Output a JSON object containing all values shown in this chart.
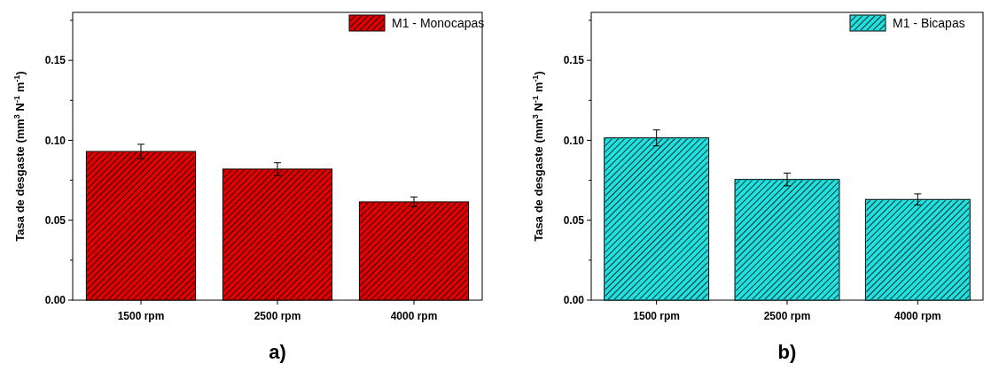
{
  "chart_data": [
    {
      "type": "bar",
      "categories": [
        "1500 rpm",
        "2500 rpm",
        "4000 rpm"
      ],
      "ylabel": "Tasa de desgaste (mm$^{3}$ N$^{-1}$ m$^{-1}$)",
      "ylim": [
        0,
        0.18
      ],
      "yticks": [
        {
          "value": 0,
          "label": "0.00"
        },
        {
          "value": 0.025,
          "label": null
        },
        {
          "value": 0.05,
          "label": "0.05"
        },
        {
          "value": 0.075,
          "label": null
        },
        {
          "value": 0.1,
          "label": "0.10"
        },
        {
          "value": 0.125,
          "label": null
        },
        {
          "value": 0.15,
          "label": "0.15"
        },
        {
          "value": 0.175,
          "label": null
        }
      ],
      "legend": "top right",
      "annotations": [
        "a)"
      ],
      "series": [
        {
          "name": "M1 - Monocapas",
          "color": "#e00000",
          "values": [
            0.093,
            0.082,
            0.0615
          ],
          "errors": [
            0.0045,
            0.004,
            0.003
          ]
        }
      ]
    },
    {
      "type": "bar",
      "categories": [
        "1500 rpm",
        "2500 rpm",
        "4000 rpm"
      ],
      "ylabel": "Tasa de desgaste (mm$^{3}$ N$^{-1}$ m$^{-1}$)",
      "ylim": [
        0,
        0.18
      ],
      "yticks": [
        {
          "value": 0,
          "label": "0.00"
        },
        {
          "value": 0.025,
          "label": null
        },
        {
          "value": 0.05,
          "label": "0.05"
        },
        {
          "value": 0.075,
          "label": null
        },
        {
          "value": 0.1,
          "label": "0.10"
        },
        {
          "value": 0.125,
          "label": null
        },
        {
          "value": 0.15,
          "label": "0.15"
        },
        {
          "value": 0.175,
          "label": null
        }
      ],
      "legend": "top right",
      "annotations": [
        "b)"
      ],
      "series": [
        {
          "name": "M1 - Bicapas",
          "color": "#20e0e0",
          "values": [
            0.1015,
            0.0755,
            0.063
          ],
          "errors": [
            0.005,
            0.004,
            0.0035
          ]
        }
      ]
    }
  ]
}
